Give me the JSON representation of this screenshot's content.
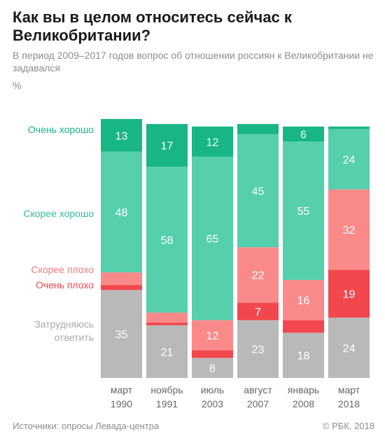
{
  "title": "Как вы в целом относитесь сейчас к Великобритании?",
  "subtitle": "В период 2009–2017 годов вопрос об отношении россиян к Великобритании не задавался",
  "unit": "%",
  "source": "Источники: опросы Левада-центра",
  "copyright": "© РБК, 2018",
  "chart_data": {
    "type": "bar",
    "stacked": true,
    "categories": [
      "март\n1990",
      "ноябрь\n1991",
      "июль\n2003",
      "август\n2007",
      "январь\n2008",
      "март\n2018"
    ],
    "series": [
      {
        "name": "Затрудняюсь\nответить",
        "color": "#b9b9b9",
        "values": [
          35,
          21,
          8,
          23,
          18,
          24
        ],
        "labels": [
          "35",
          "21",
          "8",
          "23",
          "18",
          "24"
        ]
      },
      {
        "name": "Очень плохо",
        "color": "#f2474d",
        "values": [
          2,
          1,
          3,
          7,
          5,
          19
        ],
        "labels": [
          "",
          "",
          "",
          "7",
          "",
          "19"
        ]
      },
      {
        "name": "Скорее плохо",
        "color": "#fa8a8a",
        "values": [
          5,
          4,
          12,
          22,
          16,
          32
        ],
        "labels": [
          "",
          "",
          "12",
          "22",
          "16",
          "32"
        ]
      },
      {
        "name": "Скорее хорошо",
        "color": "#56cfad",
        "values": [
          48,
          58,
          65,
          45,
          55,
          24
        ],
        "labels": [
          "48",
          "58",
          "65",
          "45",
          "55",
          "24"
        ]
      },
      {
        "name": "Очень хорошо",
        "color": "#18b585",
        "values": [
          13,
          17,
          12,
          4,
          6,
          1
        ],
        "labels": [
          "13",
          "17",
          "12",
          "",
          "6",
          ""
        ]
      }
    ],
    "legend_colors": [
      "#a9a9a9",
      "#f2474d",
      "#f07b7b",
      "#2fbf94",
      "#18b585"
    ],
    "ylim": [
      0,
      103
    ]
  }
}
